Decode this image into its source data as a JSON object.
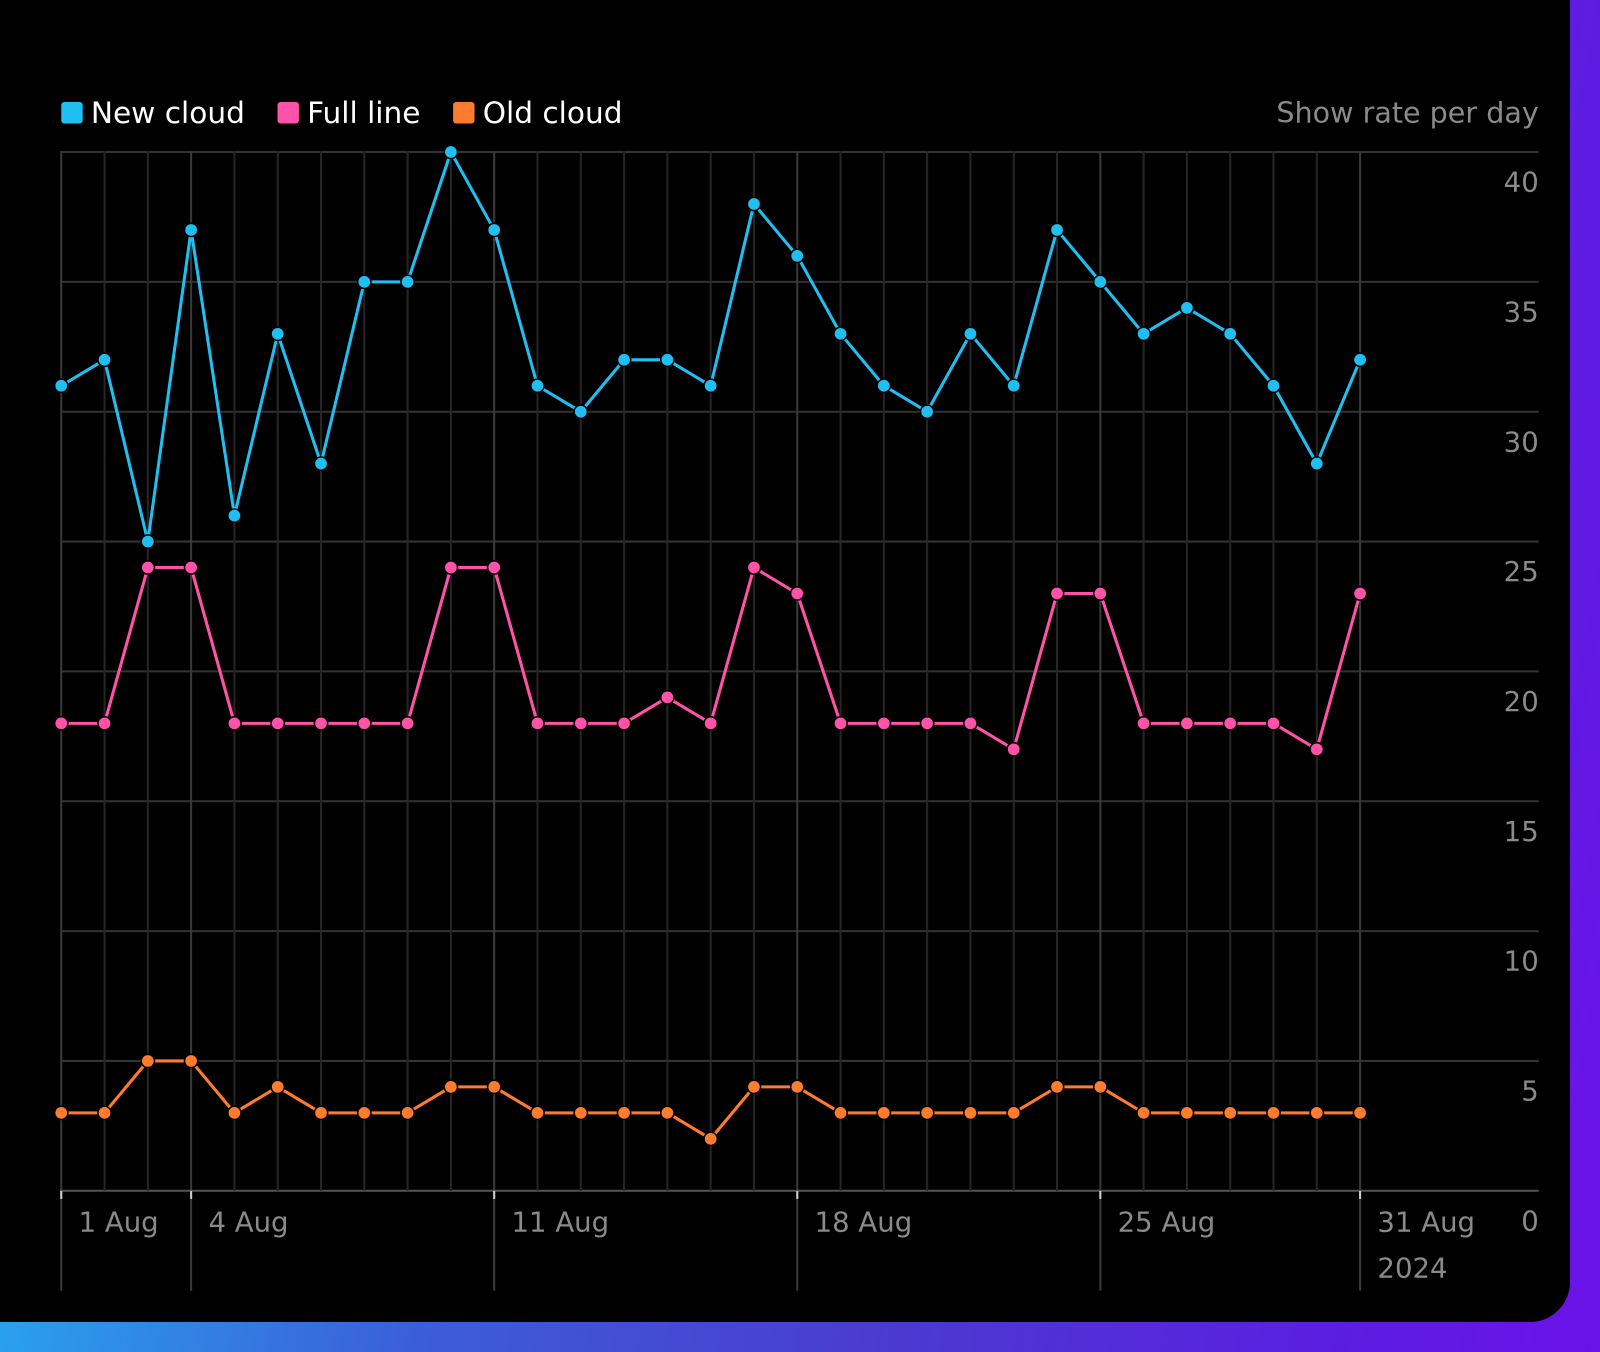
{
  "chart_data": {
    "type": "line",
    "toggle": "Show rate per day",
    "categories": [
      "1 Aug",
      null,
      null,
      "4 Aug",
      null,
      null,
      null,
      null,
      null,
      null,
      "11 Aug",
      null,
      null,
      null,
      null,
      null,
      null,
      "18 Aug",
      null,
      null,
      null,
      null,
      null,
      null,
      "25 Aug",
      null,
      null,
      null,
      null,
      null,
      "31 Aug"
    ],
    "year": "2024",
    "series": [
      {
        "name": "New cloud",
        "color": "#20bff2",
        "values": [
          31,
          32,
          25,
          37,
          26,
          33,
          28,
          35,
          35,
          40,
          37,
          31,
          30,
          32,
          32,
          31,
          38,
          36,
          33,
          31,
          30,
          33,
          31,
          37,
          35,
          33,
          34,
          33,
          31,
          28,
          32
        ]
      },
      {
        "name": "Full line",
        "color": "#ff52a8",
        "values": [
          18,
          18,
          24,
          24,
          18,
          18,
          18,
          18,
          18,
          24,
          24,
          18,
          18,
          18,
          19,
          18,
          24,
          23,
          18,
          18,
          18,
          18,
          17,
          23,
          23,
          18,
          18,
          18,
          18,
          17,
          23
        ]
      },
      {
        "name": "Old cloud",
        "color": "#ff7b2e",
        "values": [
          3,
          3,
          5,
          5,
          3,
          4,
          3,
          3,
          3,
          4,
          4,
          3,
          3,
          3,
          3,
          2,
          4,
          4,
          3,
          3,
          3,
          3,
          3,
          4,
          4,
          3,
          3,
          3,
          3,
          3,
          3
        ]
      }
    ],
    "ylim": [
      0,
      40
    ],
    "yticks": [
      0,
      5,
      10,
      15,
      20,
      25,
      30,
      35,
      40
    ],
    "grid": true
  }
}
